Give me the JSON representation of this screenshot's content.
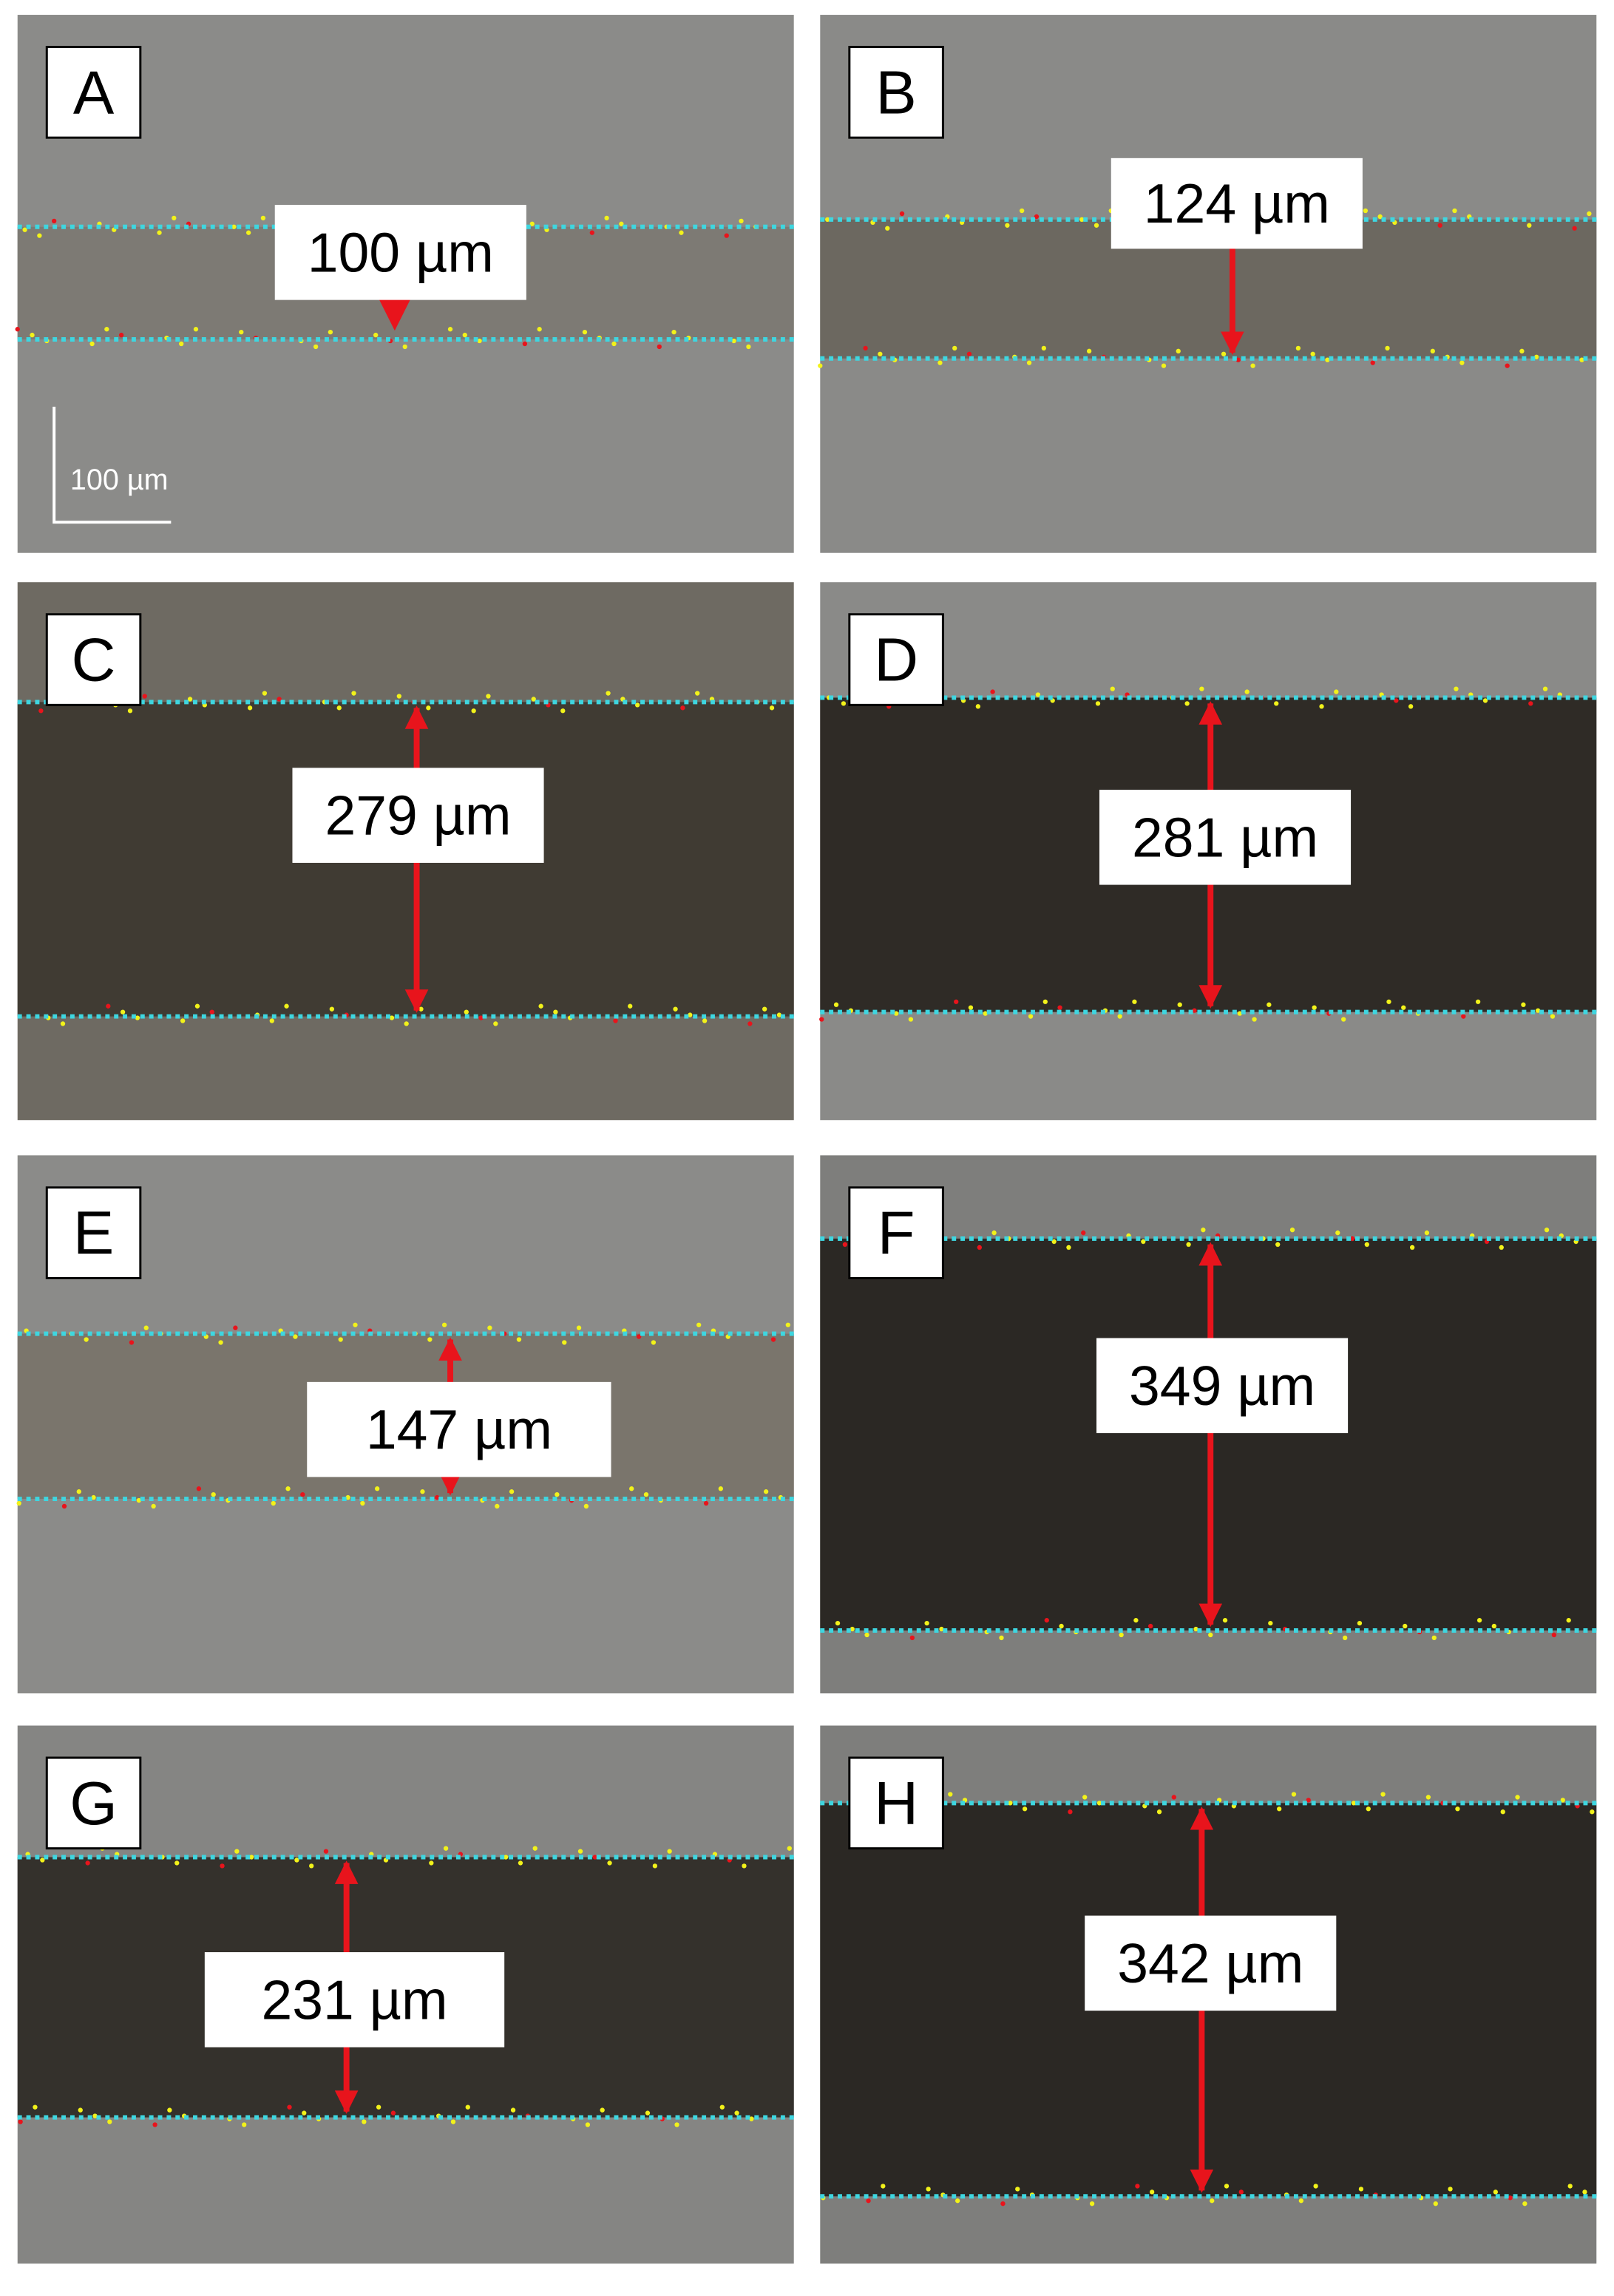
{
  "panels": [
    {
      "label": "A",
      "measurement": "100 µm",
      "scale_bar": "100 µm"
    },
    {
      "label": "B",
      "measurement": "124 µm"
    },
    {
      "label": "C",
      "measurement": "279 µm"
    },
    {
      "label": "D",
      "measurement": "281 µm"
    },
    {
      "label": "E",
      "measurement": "147 µm"
    },
    {
      "label": "F",
      "measurement": "349 µm"
    },
    {
      "label": "G",
      "measurement": "231 µm"
    },
    {
      "label": "H",
      "measurement": "342 µm"
    }
  ]
}
